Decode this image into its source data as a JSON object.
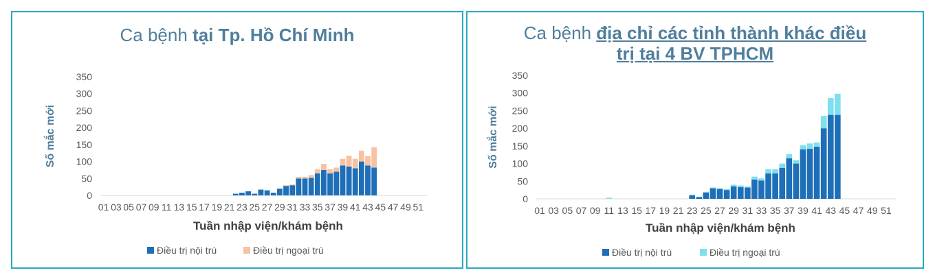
{
  "charts": {
    "left": {
      "title_prefix": "Ca bệnh ",
      "title_bold": "tại Tp. Hồ Chí Minh"
    },
    "right": {
      "title_prefix": "Ca bệnh ",
      "title_bold_line1": "địa chỉ các tỉnh thành khác điều",
      "title_bold_line2": "trị tại 4 BV TPHCM"
    }
  },
  "chart_data": [
    {
      "type": "bar",
      "stacked": true,
      "title": "Ca bệnh tại Tp. Hồ Chí Minh",
      "xlabel": "Tuần nhập viện/khám bệnh",
      "ylabel": "Số mắc mới",
      "ylim": [
        0,
        350
      ],
      "yticks": [
        0,
        50,
        100,
        150,
        200,
        250,
        300,
        350
      ],
      "x_tick_labels": [
        "01",
        "03",
        "05",
        "07",
        "09",
        "11",
        "13",
        "15",
        "17",
        "19",
        "21",
        "23",
        "25",
        "27",
        "29",
        "31",
        "33",
        "35",
        "37",
        "39",
        "41",
        "43",
        "45",
        "47",
        "49",
        "51"
      ],
      "categories": [
        1,
        2,
        3,
        4,
        5,
        6,
        7,
        8,
        9,
        10,
        11,
        12,
        13,
        14,
        15,
        16,
        17,
        18,
        19,
        20,
        21,
        22,
        23,
        24,
        25,
        26,
        27,
        28,
        29,
        30,
        31,
        32,
        33,
        34,
        35,
        36,
        37,
        38,
        39,
        40,
        41,
        42,
        43,
        44,
        45,
        46,
        47,
        48,
        49,
        50,
        51,
        52
      ],
      "series": [
        {
          "name": "Điều trị nội trú",
          "color": "#1e6fb8",
          "values": [
            0,
            0,
            0,
            0,
            0,
            0,
            0,
            0,
            0,
            0,
            0,
            0,
            0,
            0,
            0,
            0,
            0,
            0,
            0,
            0,
            0,
            5,
            8,
            12,
            5,
            17,
            15,
            8,
            20,
            28,
            30,
            50,
            50,
            52,
            65,
            75,
            65,
            70,
            88,
            85,
            80,
            100,
            88,
            82,
            0,
            0,
            0,
            0,
            0,
            0,
            0,
            0
          ]
        },
        {
          "name": "Điều trị ngoại trú",
          "color": "#f6c2a3",
          "values": [
            0,
            0,
            0,
            0,
            0,
            0,
            0,
            0,
            0,
            0,
            0,
            0,
            0,
            0,
            0,
            0,
            0,
            0,
            0,
            0,
            0,
            0,
            0,
            0,
            0,
            0,
            0,
            0,
            0,
            2,
            2,
            5,
            5,
            8,
            12,
            18,
            12,
            12,
            20,
            32,
            28,
            32,
            28,
            60,
            0,
            0,
            0,
            0,
            0,
            0,
            0,
            0
          ]
        }
      ],
      "legend": "bottom"
    },
    {
      "type": "bar",
      "stacked": true,
      "title": "Ca bệnh địa chỉ các tỉnh thành khác điều trị tại 4 BV TPHCM",
      "xlabel": "Tuần nhập viện/khám bệnh",
      "ylabel": "Số mắc mới",
      "ylim": [
        0,
        350
      ],
      "yticks": [
        0,
        50,
        100,
        150,
        200,
        250,
        300,
        350
      ],
      "x_tick_labels": [
        "01",
        "03",
        "05",
        "07",
        "09",
        "11",
        "13",
        "15",
        "17",
        "19",
        "21",
        "23",
        "25",
        "27",
        "29",
        "31",
        "33",
        "35",
        "37",
        "39",
        "41",
        "43",
        "45",
        "47",
        "49",
        "51"
      ],
      "categories": [
        1,
        2,
        3,
        4,
        5,
        6,
        7,
        8,
        9,
        10,
        11,
        12,
        13,
        14,
        15,
        16,
        17,
        18,
        19,
        20,
        21,
        22,
        23,
        24,
        25,
        26,
        27,
        28,
        29,
        30,
        31,
        32,
        33,
        34,
        35,
        36,
        37,
        38,
        39,
        40,
        41,
        42,
        43,
        44,
        45,
        46,
        47,
        48,
        49,
        50,
        51,
        52
      ],
      "series": [
        {
          "name": "Điều trị nội trú",
          "color": "#1e6fb8",
          "values": [
            0,
            0,
            0,
            0,
            0,
            0,
            0,
            0,
            0,
            0,
            0,
            0,
            0,
            0,
            0,
            0,
            0,
            0,
            0,
            0,
            0,
            0,
            10,
            5,
            18,
            30,
            28,
            25,
            35,
            33,
            32,
            55,
            52,
            72,
            72,
            88,
            115,
            100,
            140,
            142,
            148,
            200,
            238,
            238,
            0,
            0,
            0,
            0,
            0,
            0,
            0,
            0
          ]
        },
        {
          "name": "Điều trị ngoại trú",
          "color": "#7ee0ee",
          "values": [
            0,
            0,
            0,
            0,
            0,
            0,
            0,
            0,
            0,
            0,
            3,
            0,
            0,
            0,
            0,
            0,
            0,
            0,
            0,
            0,
            0,
            0,
            2,
            1,
            2,
            2,
            2,
            3,
            5,
            5,
            3,
            8,
            6,
            12,
            12,
            12,
            12,
            10,
            12,
            15,
            12,
            35,
            48,
            60,
            0,
            0,
            0,
            0,
            0,
            0,
            0,
            0
          ]
        }
      ],
      "legend": "bottom"
    }
  ]
}
